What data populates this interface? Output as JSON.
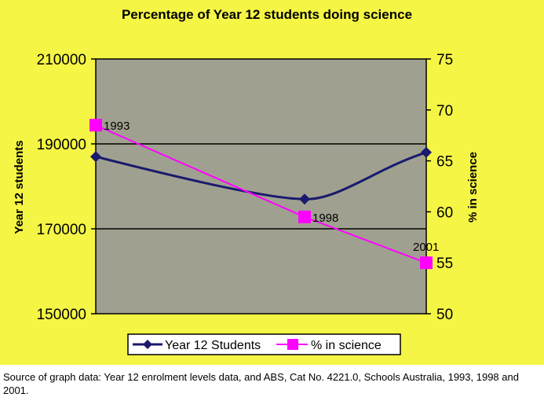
{
  "chart_data": {
    "type": "line",
    "title": "Percentage of Year 12 students doing science",
    "x": [
      "1993",
      "1998",
      "2001"
    ],
    "series": [
      {
        "name": "Year 12 Students",
        "axis": "left",
        "values": [
          187000,
          177000,
          188000
        ],
        "color": "#1a1a6e",
        "marker": "diamond"
      },
      {
        "name": "% in science",
        "axis": "right",
        "values": [
          68.5,
          59.5,
          55
        ],
        "color": "#ff00ff",
        "marker": "square"
      }
    ],
    "ylabel": "Year 12 students",
    "y2label": "% in science",
    "ylim": [
      150000,
      210000
    ],
    "y2lim": [
      50,
      75
    ],
    "yticks": [
      "150000",
      "170000",
      "190000",
      "210000"
    ],
    "y2ticks": [
      "50",
      "55",
      "60",
      "65",
      "70",
      "75"
    ],
    "point_labels": [
      "1993",
      "1998",
      "2001"
    ],
    "plot_background": "#a0a090",
    "background": "#f5f545",
    "grid": true,
    "legend_position": "bottom"
  },
  "source_note": "Source of graph data:  Year 12 enrolment levels data, and ABS, Cat No. 4221.0, Schools Australia, 1993, 1998 and 2001."
}
